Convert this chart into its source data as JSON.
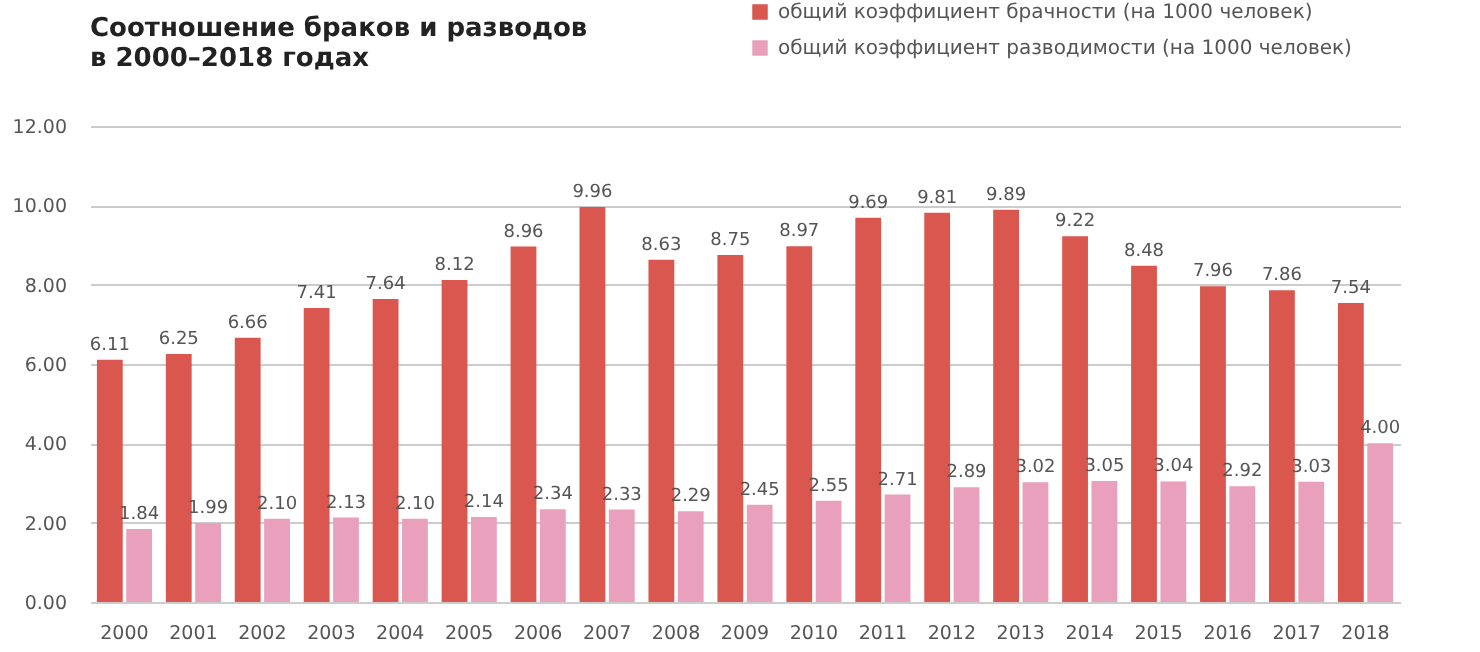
{
  "chart_data": {
    "type": "bar",
    "title": [
      "Соотношение браков и разводов",
      "в 2000–2018 годах"
    ],
    "categories": [
      "2000",
      "2001",
      "2002",
      "2003",
      "2004",
      "2005",
      "2006",
      "2007",
      "2008",
      "2009",
      "2010",
      "2011",
      "2012",
      "2013",
      "2014",
      "2015",
      "2016",
      "2017",
      "2018"
    ],
    "series": [
      {
        "name": "общий коэффициент брачности (на 1000 человек)",
        "color": "#d9574e",
        "values": [
          6.11,
          6.25,
          6.66,
          7.41,
          7.64,
          8.12,
          8.96,
          9.96,
          8.63,
          8.75,
          8.97,
          9.69,
          9.81,
          9.89,
          9.22,
          8.48,
          7.96,
          7.86,
          7.54
        ],
        "value_labels": [
          "6.11",
          "6.25",
          "6.66",
          "7.41",
          "7.64",
          "8.12",
          "8.96",
          "9.96",
          "8.63",
          "8.75",
          "8.97",
          "9.69",
          "9.81",
          "9.89",
          "9.22",
          "8.48",
          "7.96",
          "7.86",
          "7.54"
        ]
      },
      {
        "name": "общий коэффициент разводимости (на 1000 человек)",
        "color": "#e8a0bd",
        "values": [
          1.84,
          1.99,
          2.1,
          2.13,
          2.1,
          2.14,
          2.34,
          2.33,
          2.29,
          2.45,
          2.55,
          2.71,
          2.89,
          3.02,
          3.05,
          3.04,
          2.92,
          3.03,
          4.0
        ],
        "value_labels": [
          "1.84",
          "1.99",
          "2.10",
          "2.13",
          "2.10",
          "2.14",
          "2.34",
          "2.33",
          "2.29",
          "2.45",
          "2.55",
          "2.71",
          "2.89",
          "3.02",
          "3.05",
          "3.04",
          "2.92",
          "3.03",
          "4.00"
        ]
      }
    ],
    "ylim": [
      0,
      12
    ],
    "yticks": [
      {
        "value": 0,
        "label": "0.00"
      },
      {
        "value": 2,
        "label": "2.00"
      },
      {
        "value": 4,
        "label": "4.00"
      },
      {
        "value": 6,
        "label": "6.00"
      },
      {
        "value": 8,
        "label": "8.00"
      },
      {
        "value": 10,
        "label": "10.00"
      },
      {
        "value": 12,
        "label": "12.00"
      }
    ],
    "grid": "y",
    "legend": "top right"
  }
}
